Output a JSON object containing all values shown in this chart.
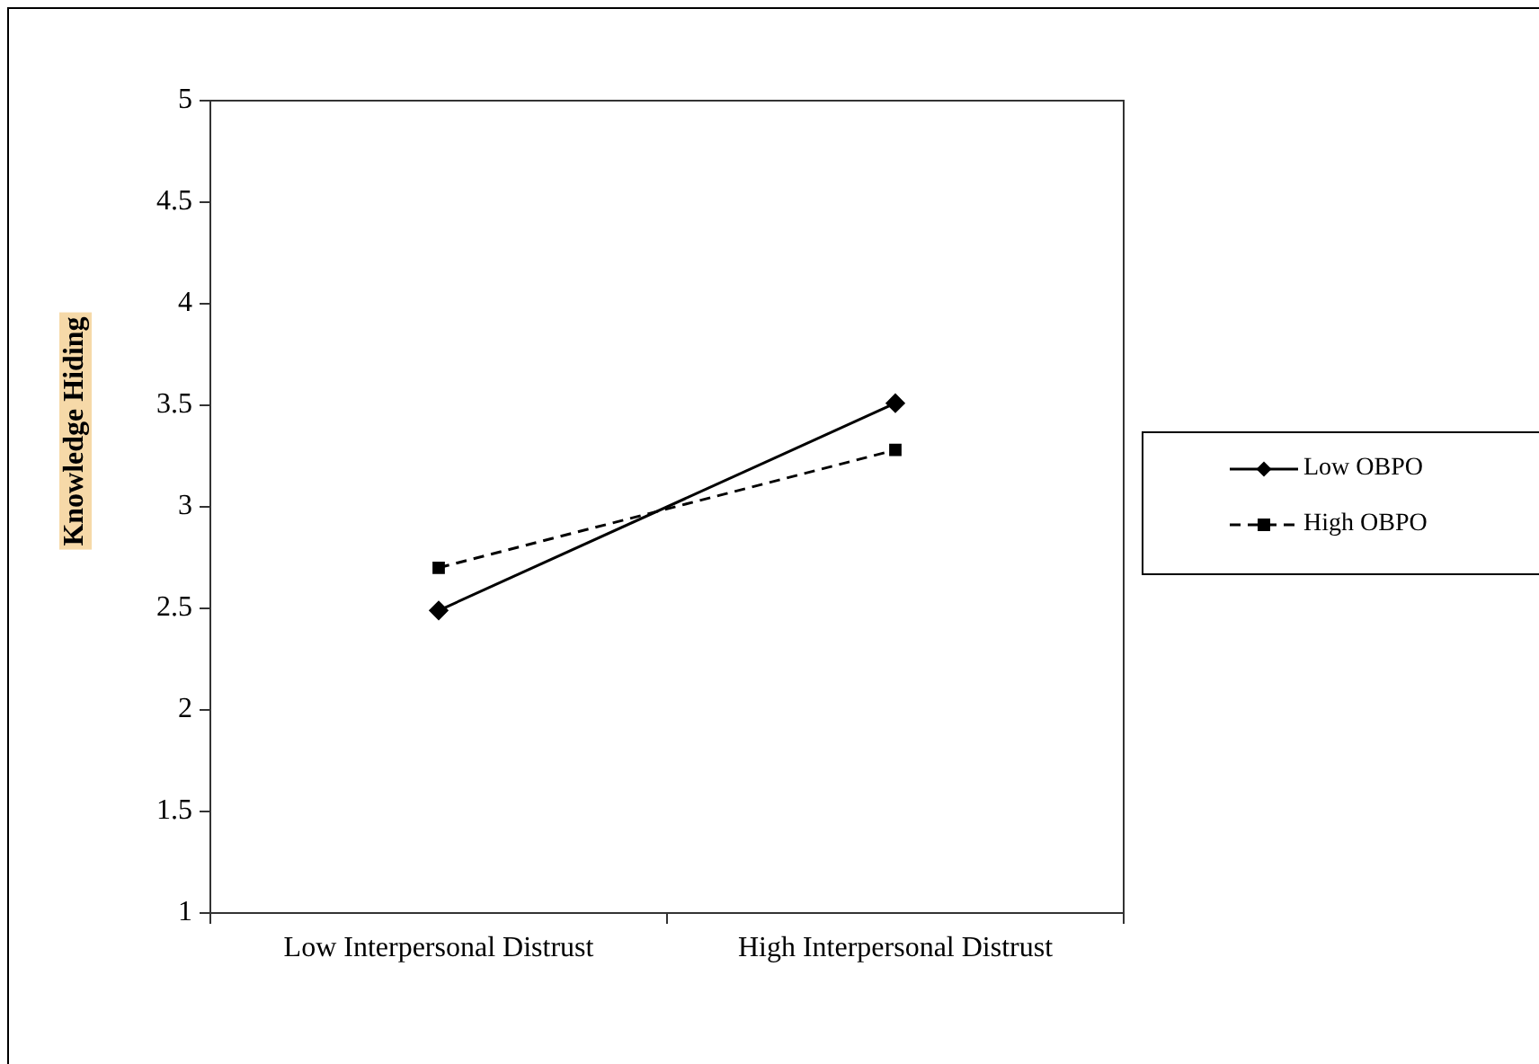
{
  "chart_data": {
    "type": "line",
    "ylabel": "Knowledge Hiding",
    "categories": [
      "Low Interpersonal Distrust",
      "High Interpersonal Distrust"
    ],
    "ylim": [
      1,
      5
    ],
    "yticks": [
      1,
      1.5,
      2,
      2.5,
      3,
      3.5,
      4,
      4.5,
      5
    ],
    "grid": false,
    "legend": "right",
    "series": [
      {
        "name": "Low OBPO",
        "color": "#000000",
        "values": [
          2.49,
          3.51
        ],
        "marker": "diamond",
        "line_style": "solid"
      },
      {
        "name": "High OBPO",
        "color": "#000000",
        "values": [
          2.7,
          3.28
        ],
        "marker": "square",
        "line_style": "dashed"
      }
    ]
  }
}
